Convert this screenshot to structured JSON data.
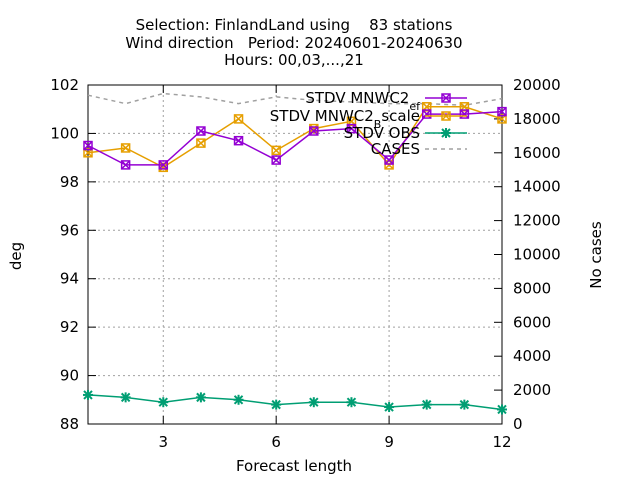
{
  "chart_data": {
    "type": "line",
    "title_lines": [
      "Selection: FinlandLand using    83 stations",
      "Wind direction   Period: 20240601-20240630",
      "Hours: 00,03,...,21"
    ],
    "xlabel": "Forecast length",
    "ylabel": "deg",
    "y2label": "No cases",
    "xlim": [
      1,
      12
    ],
    "ylim": [
      88,
      102
    ],
    "y2lim": [
      0,
      20000
    ],
    "xticks": [
      "3",
      "6",
      "9",
      "12"
    ],
    "yticks": [
      "88",
      "90",
      "92",
      "94",
      "96",
      "98",
      "100",
      "102"
    ],
    "y2ticks": [
      "0",
      "2000",
      "4000",
      "6000",
      "8000",
      "10000",
      "12000",
      "14000",
      "16000",
      "18000",
      "20000"
    ],
    "grid": true,
    "legend_position": "top-right",
    "x": [
      1,
      2,
      3,
      4,
      5,
      6,
      7,
      8,
      9,
      10,
      11,
      12
    ],
    "series": [
      {
        "name": "STDV MNWC2_ef",
        "name_main": "STDV MNWC2",
        "name_sub": "ef",
        "color": "#9400d3",
        "axis": "y1",
        "marker": "cross-square",
        "values": [
          99.5,
          98.7,
          98.7,
          100.1,
          99.7,
          98.9,
          100.1,
          100.2,
          98.9,
          100.8,
          100.8,
          100.9
        ]
      },
      {
        "name": "STDV MNWC2_Bscale",
        "name_main": "STDV MNWC2",
        "name_sub": "B",
        "name_tail": "scale",
        "color": "#e69f00",
        "axis": "y1",
        "marker": "cross-square",
        "values": [
          99.2,
          99.4,
          98.6,
          99.6,
          100.6,
          99.3,
          100.2,
          100.5,
          98.7,
          101.1,
          101.1,
          100.6
        ]
      },
      {
        "name": "STDV OBS",
        "color": "#009e73",
        "axis": "y1",
        "marker": "star",
        "values": [
          89.2,
          89.1,
          88.9,
          89.1,
          89.0,
          88.8,
          88.9,
          88.9,
          88.7,
          88.8,
          88.8,
          88.6
        ]
      },
      {
        "name": "CASES",
        "color": "#a0a0a0",
        "axis": "y2",
        "dashed": true,
        "values": [
          19400,
          18900,
          19500,
          19300,
          18900,
          19300,
          19100,
          19000,
          18900,
          18900,
          18800,
          19200
        ]
      }
    ]
  }
}
